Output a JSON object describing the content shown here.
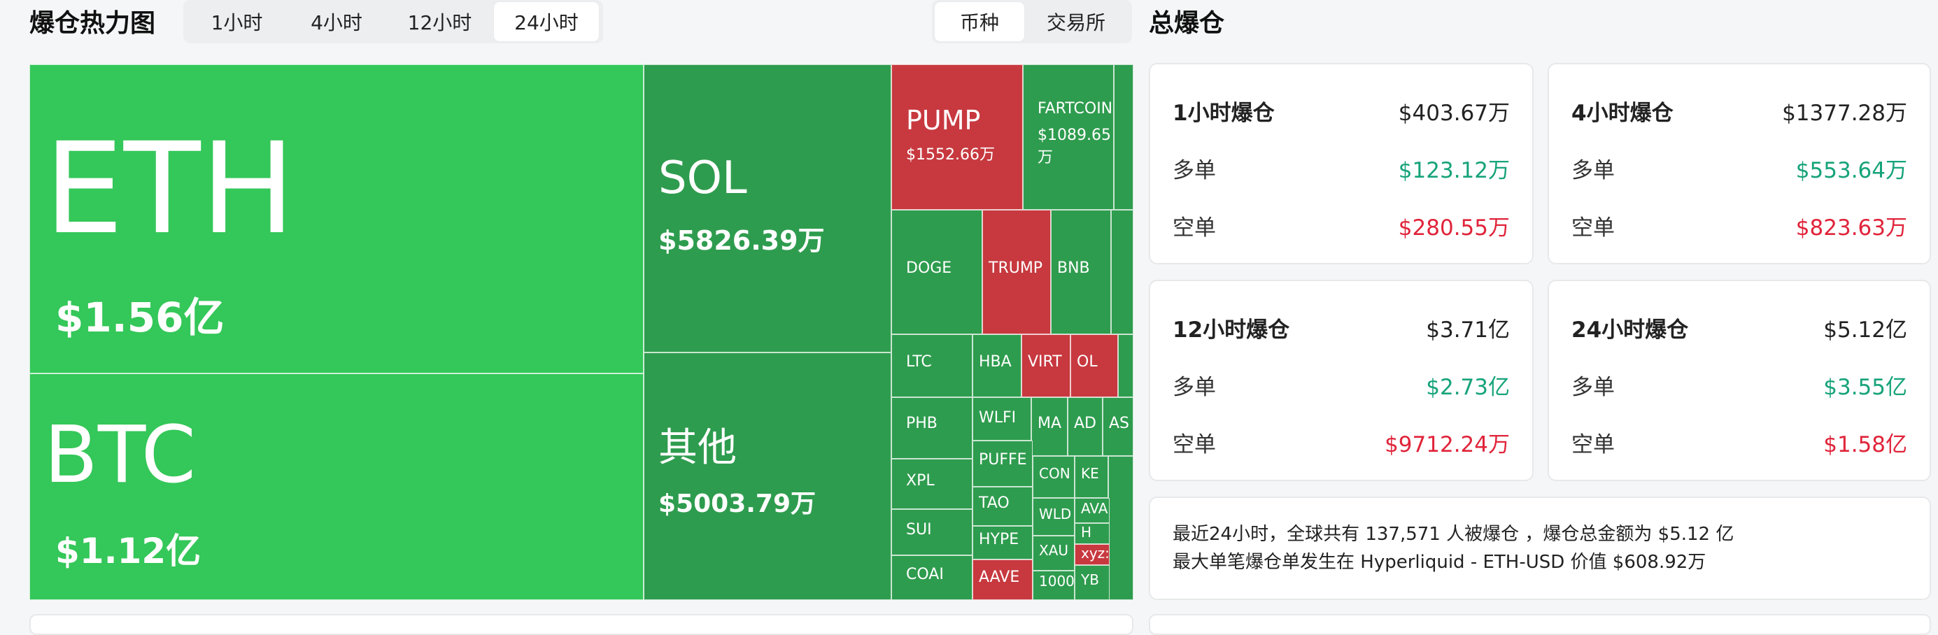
{
  "header": {
    "title": "爆仓热力图",
    "time_tabs": [
      {
        "label": "1小时",
        "active": false
      },
      {
        "label": "4小时",
        "active": false
      },
      {
        "label": "12小时",
        "active": false
      },
      {
        "label": "24小时",
        "active": true
      }
    ],
    "group_tabs": [
      {
        "label": "币种",
        "active": true
      },
      {
        "label": "交易所",
        "active": false
      }
    ]
  },
  "treemap": {
    "colors": {
      "bright_green": "#34c759",
      "green": "#2e9c4e",
      "red": "#c7393f"
    },
    "cells": [
      {
        "symbol": "ETH",
        "value": "$1.56亿",
        "color": "bright_green"
      },
      {
        "symbol": "BTC",
        "value": "$1.12亿",
        "color": "bright_green"
      },
      {
        "symbol": "SOL",
        "value": "$5826.39万",
        "color": "green"
      },
      {
        "symbol": "其他",
        "value": "$5003.79万",
        "color": "green"
      },
      {
        "symbol": "PUMP",
        "value": "$1552.66万",
        "color": "red"
      },
      {
        "symbol": "FARTCOIN",
        "value": "$1089.65",
        "value2": "万",
        "color": "green"
      },
      {
        "symbol": "DOGE",
        "color": "green"
      },
      {
        "symbol": "TRUMP",
        "color": "red"
      },
      {
        "symbol": "BNB",
        "color": "green"
      },
      {
        "symbol": "LTC",
        "color": "green"
      },
      {
        "symbol": "HBA",
        "color": "green"
      },
      {
        "symbol": "VIRT",
        "color": "red"
      },
      {
        "symbol": "OL",
        "color": "red"
      },
      {
        "symbol": "PHB",
        "color": "green"
      },
      {
        "symbol": "WLFI",
        "color": "green"
      },
      {
        "symbol": "MA",
        "color": "green"
      },
      {
        "symbol": "AD",
        "color": "green"
      },
      {
        "symbol": "AS",
        "color": "green"
      },
      {
        "symbol": "XPL",
        "color": "green"
      },
      {
        "symbol": "PUFFE",
        "color": "green"
      },
      {
        "symbol": "CON",
        "color": "green"
      },
      {
        "symbol": "KE",
        "color": "green"
      },
      {
        "symbol": "SUI",
        "color": "green"
      },
      {
        "symbol": "TAO",
        "color": "green"
      },
      {
        "symbol": "WLD",
        "color": "green"
      },
      {
        "symbol": "AVA",
        "color": "green"
      },
      {
        "symbol": "H",
        "color": "green"
      },
      {
        "symbol": "HYPE",
        "color": "green"
      },
      {
        "symbol": "XAU",
        "color": "green"
      },
      {
        "symbol": "xyz:",
        "color": "red"
      },
      {
        "symbol": "COAI",
        "color": "green"
      },
      {
        "symbol": "AAVE",
        "color": "red"
      },
      {
        "symbol": "1000",
        "color": "green"
      },
      {
        "symbol": "YB",
        "color": "green"
      }
    ]
  },
  "right_panel": {
    "title": "总爆仓",
    "long_label": "多单",
    "short_label": "空单",
    "cards": [
      {
        "title": "1小时爆仓",
        "total": "$403.67万",
        "long": "$123.12万",
        "short": "$280.55万"
      },
      {
        "title": "4小时爆仓",
        "total": "$1377.28万",
        "long": "$553.64万",
        "short": "$823.63万"
      },
      {
        "title": "12小时爆仓",
        "total": "$3.71亿",
        "long": "$2.73亿",
        "short": "$9712.24万"
      },
      {
        "title": "24小时爆仓",
        "total": "$5.12亿",
        "long": "$3.55亿",
        "short": "$1.58亿"
      }
    ],
    "summary_line1": "最近24小时，全球共有 137,571 人被爆仓 ，爆仓总金额为 $5.12 亿",
    "summary_line2": "最大单笔爆仓单发生在 Hyperliquid - ETH-USD 价值 $608.92万"
  }
}
